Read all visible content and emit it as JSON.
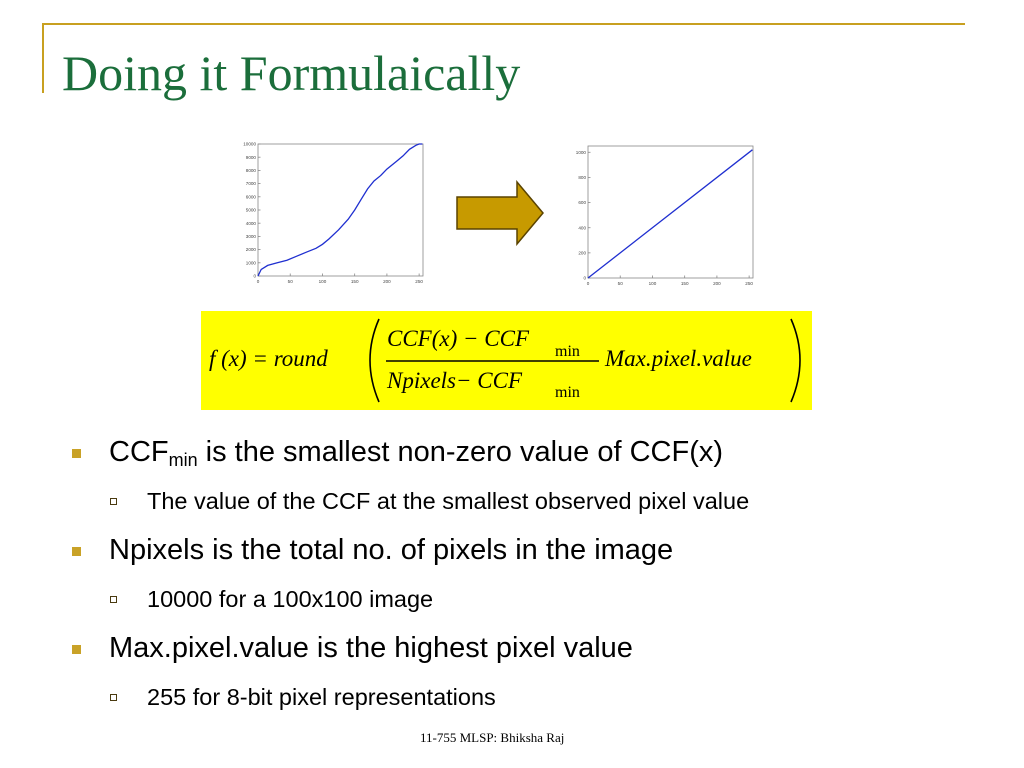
{
  "slide": {
    "title": "Doing it Formulaically",
    "footer": "11-755 MLSP: Bhiksha Raj"
  },
  "colors": {
    "title": "#1b6e3b",
    "frame": "#c8a020",
    "formula_bg": "#ffff00",
    "arrow_fill": "#c79a00",
    "plot_line": "#1f2fd0"
  },
  "icons": [
    "right-arrow-icon",
    "bullet-square-icon",
    "bullet-hollow-square-icon"
  ],
  "formula": {
    "lhs": "f (x) = round",
    "numerator": "CCF(x) − CCF",
    "numerator_sub": "min",
    "denominator": "Npixels− CCF",
    "denominator_sub": "min",
    "multiplier": "Max.pixel.value"
  },
  "bullets": [
    {
      "text_main": "CCF",
      "text_sub": "min",
      "text_rest": " is the smallest non-zero value of CCF(x)",
      "subitems": [
        "The value of the CCF at the smallest observed pixel value"
      ]
    },
    {
      "text": "Npixels is the total no. of pixels in the image",
      "subitems": [
        "10000 for a 100x100 image"
      ]
    },
    {
      "text": "Max.pixel.value is the highest pixel value",
      "subitems": [
        "255 for 8-bit pixel representations"
      ]
    }
  ],
  "chart_data": [
    {
      "type": "line",
      "title": "",
      "xlabel": "",
      "ylabel": "",
      "xlim": [
        0,
        256
      ],
      "ylim": [
        0,
        10000
      ],
      "x_ticks": [
        "0",
        "50",
        "100",
        "150",
        "200",
        "250"
      ],
      "y_ticks": [
        "0",
        "1000",
        "2000",
        "3000",
        "4000",
        "5000",
        "6000",
        "7000",
        "8000",
        "9000",
        "10000"
      ],
      "series": [
        {
          "x": [
            0,
            5,
            15,
            30,
            45,
            60,
            75,
            90,
            100,
            110,
            125,
            140,
            150,
            160,
            170,
            180,
            190,
            200,
            215,
            225,
            235,
            245,
            250,
            255
          ],
          "y": [
            0,
            500,
            800,
            1000,
            1200,
            1500,
            1800,
            2100,
            2400,
            2800,
            3500,
            4300,
            5000,
            5800,
            6600,
            7200,
            7600,
            8100,
            8700,
            9100,
            9600,
            9900,
            10000,
            10000
          ]
        }
      ]
    },
    {
      "type": "line",
      "title": "",
      "xlabel": "",
      "ylabel": "",
      "xlim": [
        0,
        256
      ],
      "ylim": [
        0,
        1050
      ],
      "x_ticks": [
        "0",
        "50",
        "100",
        "150",
        "200",
        "250"
      ],
      "y_ticks": [
        "0",
        "200",
        "400",
        "600",
        "800",
        "1000"
      ],
      "series": [
        {
          "x": [
            0,
            255
          ],
          "y": [
            0,
            1020
          ]
        }
      ]
    }
  ]
}
